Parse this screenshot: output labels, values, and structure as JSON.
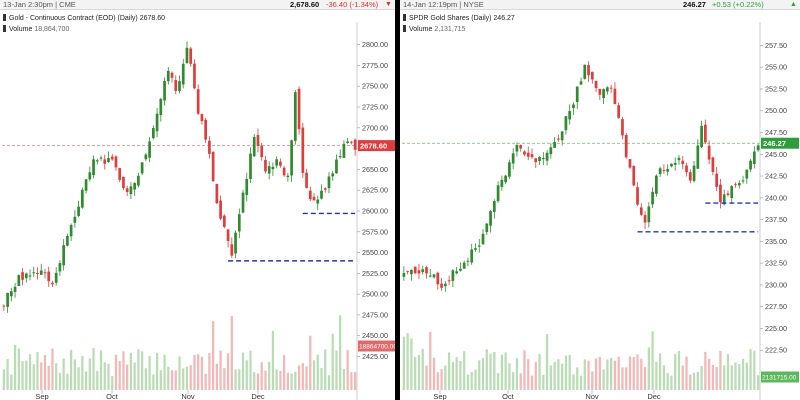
{
  "panels": [
    {
      "timestamp": "13-Jan 2:30pm | CME",
      "last_price": "2,678.60",
      "change": "-36.40 (-1.34%)",
      "change_direction": "down",
      "change_color": "#e03030",
      "title": "Gold - Continuous Contract (EOD) (Daily) 2678.60",
      "volume_label": "Volume",
      "volume_value": "18,864,700"
    },
    {
      "timestamp": "14-Jan 12:19pm | NYSE",
      "last_price": "246.27",
      "change": "+0.53 (+0.22%)",
      "change_direction": "up",
      "change_color": "#2e9e3a",
      "title": "SPDR Gold Shares (Daily) 246.27",
      "volume_label": "Volume",
      "volume_value": "2,131,715"
    }
  ],
  "chart_data": [
    {
      "type": "candlestick",
      "x_ticks": [
        "Sep",
        "Oct",
        "Nov",
        "Dec"
      ],
      "y_ticks": [
        2425,
        2450,
        2475,
        2500,
        2525,
        2550,
        2575,
        2600,
        2625,
        2650,
        2675,
        2700,
        2725,
        2750,
        2775,
        2800
      ],
      "ylim": [
        2410,
        2820
      ],
      "last_price_label": "2678.60",
      "volume_label": "18864700.00",
      "sessions": 95,
      "up_color": "#2e8b2e",
      "down_color": "#e03c3c",
      "anchors": [
        [
          0,
          2490
        ],
        [
          4,
          2518
        ],
        [
          9,
          2530
        ],
        [
          13,
          2512
        ],
        [
          18,
          2585
        ],
        [
          24,
          2660
        ],
        [
          29,
          2660
        ],
        [
          33,
          2620
        ],
        [
          36,
          2640
        ],
        [
          40,
          2700
        ],
        [
          44,
          2770
        ],
        [
          46,
          2740
        ],
        [
          49,
          2800
        ],
        [
          52,
          2720
        ],
        [
          55,
          2670
        ],
        [
          57,
          2610
        ],
        [
          59,
          2580
        ],
        [
          61,
          2545
        ],
        [
          64,
          2620
        ],
        [
          67,
          2690
        ],
        [
          70,
          2645
        ],
        [
          73,
          2660
        ],
        [
          76,
          2640
        ],
        [
          78,
          2740
        ],
        [
          80,
          2650
        ],
        [
          82,
          2610
        ],
        [
          85,
          2620
        ],
        [
          88,
          2650
        ],
        [
          91,
          2680
        ],
        [
          94,
          2678.6
        ]
      ],
      "support_lines": [
        {
          "price": 2540,
          "from": 60,
          "to": 94
        },
        {
          "price": 2597,
          "from": 80,
          "to": 94
        }
      ],
      "last_price_line": 2678.6
    },
    {
      "type": "candlestick",
      "x_ticks": [
        "Sep",
        "Oct",
        "Nov",
        "Dec"
      ],
      "y_ticks": [
        222.5,
        225.0,
        227.5,
        230.0,
        232.5,
        235.0,
        237.5,
        240.0,
        242.5,
        245.0,
        247.5,
        250.0,
        252.5,
        255.0,
        257.5
      ],
      "ylim": [
        220.0,
        259.5
      ],
      "last_price_label": "246.27",
      "volume_label": "2131715.00",
      "sessions": 95,
      "up_color": "#2e8b2e",
      "down_color": "#e03c3c",
      "anchors": [
        [
          0,
          231
        ],
        [
          5,
          232
        ],
        [
          10,
          230
        ],
        [
          15,
          232
        ],
        [
          20,
          235
        ],
        [
          25,
          241
        ],
        [
          30,
          246
        ],
        [
          35,
          244
        ],
        [
          40,
          246
        ],
        [
          45,
          251
        ],
        [
          48,
          255
        ],
        [
          52,
          252
        ],
        [
          55,
          253
        ],
        [
          58,
          247
        ],
        [
          61,
          241
        ],
        [
          64,
          237
        ],
        [
          67,
          243
        ],
        [
          70,
          243
        ],
        [
          73,
          245
        ],
        [
          76,
          242
        ],
        [
          79,
          248
        ],
        [
          81,
          244
        ],
        [
          84,
          240
        ],
        [
          87,
          241
        ],
        [
          90,
          242
        ],
        [
          94,
          246.27
        ]
      ],
      "support_lines": [
        {
          "price": 236.1,
          "from": 62,
          "to": 94
        },
        {
          "price": 239.4,
          "from": 80,
          "to": 94
        }
      ],
      "last_price_line": 246.27
    }
  ]
}
